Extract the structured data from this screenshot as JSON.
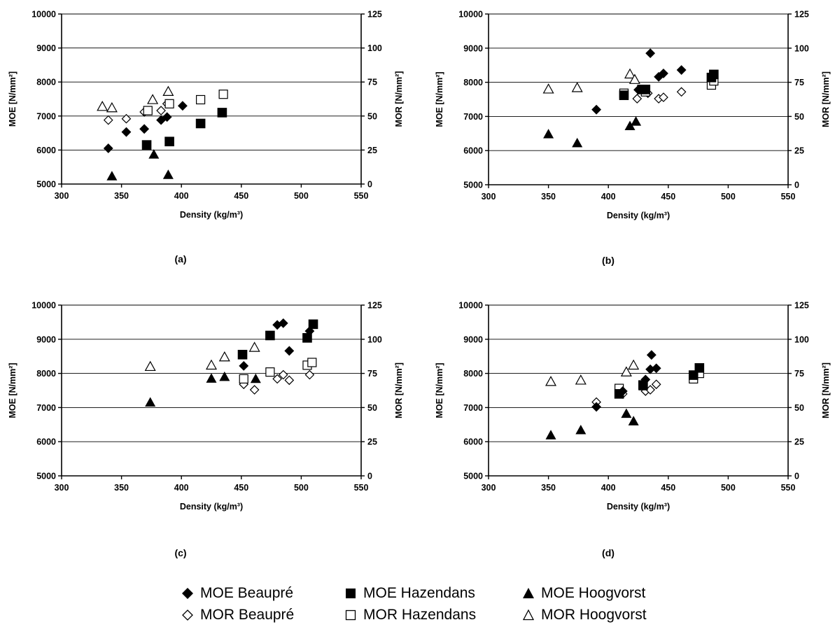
{
  "chart_data": [
    {
      "type": "scatter",
      "panel_label": "(a)",
      "xlabel": "Density (kg/m³)",
      "ylabel": "MOE [N/mm²]",
      "y2label": "MOR [N/mm²]",
      "xlim": [
        300,
        550
      ],
      "ylim": [
        5000,
        10000
      ],
      "y2lim": [
        0,
        125
      ],
      "xticks": [
        "300",
        "350",
        "400",
        "450",
        "500",
        "550"
      ],
      "yticks": [
        "5000",
        "6000",
        "7000",
        "8000",
        "9000",
        "10000"
      ],
      "y2ticks": [
        "0",
        "25",
        "50",
        "75",
        "100",
        "125"
      ],
      "grid": true,
      "series": [
        {
          "name": "MOE Beaupré",
          "axis": "left",
          "points": [
            [
              339,
              6050
            ],
            [
              354,
              6530
            ],
            [
              369,
              6620
            ],
            [
              383,
              6880
            ],
            [
              388,
              6970
            ],
            [
              401,
              7300
            ]
          ]
        },
        {
          "name": "MOE Hazendans",
          "axis": "left",
          "points": [
            [
              371,
              6150
            ],
            [
              390,
              6250
            ],
            [
              416,
              6780
            ],
            [
              434,
              7100
            ]
          ]
        },
        {
          "name": "MOE Hoogvorst",
          "axis": "left",
          "points": [
            [
              342,
              5230
            ],
            [
              377,
              5870
            ],
            [
              389,
              5270
            ]
          ]
        },
        {
          "name": "MOR Beaupré",
          "axis": "right",
          "points": [
            [
              339,
              47
            ],
            [
              354,
              48
            ],
            [
              369,
              53
            ],
            [
              383,
              54
            ],
            [
              388,
              59
            ]
          ]
        },
        {
          "name": "MOR Hazendans",
          "axis": "right",
          "points": [
            [
              372,
              54
            ],
            [
              390,
              59
            ],
            [
              416,
              62
            ],
            [
              435,
              66
            ]
          ]
        },
        {
          "name": "MOR Hoogvorst",
          "axis": "right",
          "points": [
            [
              334,
              57
            ],
            [
              342,
              56
            ],
            [
              376,
              62
            ],
            [
              389,
              68
            ]
          ]
        }
      ]
    },
    {
      "type": "scatter",
      "panel_label": "(b)",
      "xlabel": "Density (kg/m³)",
      "ylabel": "MOE [N/mm²]",
      "y2label": "MOR [N/mm²]",
      "xlim": [
        300,
        550
      ],
      "ylim": [
        5000,
        10000
      ],
      "y2lim": [
        0,
        125
      ],
      "xticks": [
        "300",
        "350",
        "400",
        "450",
        "500",
        "550"
      ],
      "yticks": [
        "5000",
        "6000",
        "7000",
        "8000",
        "9000",
        "10000"
      ],
      "y2ticks": [
        "0",
        "25",
        "50",
        "75",
        "100",
        "125"
      ],
      "grid": true,
      "series": [
        {
          "name": "MOE Beaupré",
          "axis": "left",
          "points": [
            [
              390,
              7200
            ],
            [
              425,
              7780
            ],
            [
              435,
              8850
            ],
            [
              442,
              8160
            ],
            [
              446,
              8260
            ],
            [
              461,
              8360
            ]
          ]
        },
        {
          "name": "MOE Hazendans",
          "axis": "left",
          "points": [
            [
              413,
              7620
            ],
            [
              428,
              7790
            ],
            [
              431,
              7790
            ],
            [
              486,
              8140
            ],
            [
              488,
              8230
            ]
          ]
        },
        {
          "name": "MOE Hoogvorst",
          "axis": "left",
          "points": [
            [
              350,
              6480
            ],
            [
              374,
              6220
            ],
            [
              418,
              6720
            ],
            [
              423,
              6850
            ]
          ]
        },
        {
          "name": "MOR Beaupré",
          "axis": "right",
          "points": [
            [
              424,
              63
            ],
            [
              433,
              67
            ],
            [
              442,
              63
            ],
            [
              446,
              64
            ],
            [
              461,
              68
            ]
          ]
        },
        {
          "name": "MOR Hazendans",
          "axis": "right",
          "points": [
            [
              413,
              67
            ],
            [
              431,
              68
            ],
            [
              486,
              73
            ],
            [
              488,
              76
            ]
          ]
        },
        {
          "name": "MOR Hoogvorst",
          "axis": "right",
          "points": [
            [
              350,
              70
            ],
            [
              374,
              71
            ],
            [
              418,
              81
            ],
            [
              422,
              77
            ]
          ]
        }
      ]
    },
    {
      "type": "scatter",
      "panel_label": "(c)",
      "xlabel": "Density (kg/m³)",
      "ylabel": "MOE [N/mm²]",
      "y2label": "MOR [N/mm²]",
      "xlim": [
        300,
        550
      ],
      "ylim": [
        5000,
        10000
      ],
      "y2lim": [
        0,
        125
      ],
      "xticks": [
        "300",
        "350",
        "400",
        "450",
        "500",
        "550"
      ],
      "yticks": [
        "5000",
        "6000",
        "7000",
        "8000",
        "9000",
        "10000"
      ],
      "y2ticks": [
        "0",
        "25",
        "50",
        "75",
        "100",
        "125"
      ],
      "grid": true,
      "series": [
        {
          "name": "MOE Beaupré",
          "axis": "left",
          "points": [
            [
              452,
              8220
            ],
            [
              480,
              9420
            ],
            [
              485,
              9470
            ],
            [
              490,
              8660
            ],
            [
              507,
              9240
            ]
          ]
        },
        {
          "name": "MOE Hazendans",
          "axis": "left",
          "points": [
            [
              451,
              8550
            ],
            [
              474,
              9110
            ],
            [
              505,
              9040
            ],
            [
              510,
              9440
            ]
          ]
        },
        {
          "name": "MOE Hoogvorst",
          "axis": "left",
          "points": [
            [
              374,
              7150
            ],
            [
              425,
              7850
            ],
            [
              436,
              7900
            ],
            [
              462,
              7840
            ]
          ]
        },
        {
          "name": "MOR Beaupré",
          "axis": "right",
          "points": [
            [
              452,
              67
            ],
            [
              461,
              63
            ],
            [
              480,
              71
            ],
            [
              485,
              74
            ],
            [
              490,
              70
            ],
            [
              507,
              74
            ]
          ]
        },
        {
          "name": "MOR Hazendans",
          "axis": "right",
          "points": [
            [
              452,
              71
            ],
            [
              474,
              76
            ],
            [
              505,
              81
            ],
            [
              509,
              83
            ]
          ]
        },
        {
          "name": "MOR Hoogvorst",
          "axis": "right",
          "points": [
            [
              374,
              80
            ],
            [
              425,
              81
            ],
            [
              436,
              87
            ],
            [
              461,
              94
            ]
          ]
        }
      ]
    },
    {
      "type": "scatter",
      "panel_label": "(d)",
      "xlabel": "Density (kg/m³)",
      "ylabel": "MOE [N/mm²]",
      "y2label": "MOR [N/mm²]",
      "xlim": [
        300,
        550
      ],
      "ylim": [
        5000,
        10000
      ],
      "y2lim": [
        0,
        125
      ],
      "xticks": [
        "300",
        "350",
        "400",
        "450",
        "500",
        "550"
      ],
      "yticks": [
        "5000",
        "6000",
        "7000",
        "8000",
        "9000",
        "10000"
      ],
      "y2ticks": [
        "0",
        "25",
        "50",
        "75",
        "100",
        "125"
      ],
      "grid": true,
      "series": [
        {
          "name": "MOE Beaupré",
          "axis": "left",
          "points": [
            [
              390,
              7020
            ],
            [
              412,
              7480
            ],
            [
              431,
              7820
            ],
            [
              435,
              8120
            ],
            [
              436,
              8540
            ],
            [
              440,
              8150
            ]
          ]
        },
        {
          "name": "MOE Hazendans",
          "axis": "left",
          "points": [
            [
              409,
              7400
            ],
            [
              429,
              7660
            ],
            [
              471,
              7950
            ],
            [
              476,
              8160
            ]
          ]
        },
        {
          "name": "MOE Hoogvorst",
          "axis": "left",
          "points": [
            [
              352,
              6190
            ],
            [
              377,
              6340
            ],
            [
              415,
              6820
            ],
            [
              421,
              6600
            ]
          ]
        },
        {
          "name": "MOR Beaupré",
          "axis": "right",
          "points": [
            [
              390,
              54
            ],
            [
              412,
              60
            ],
            [
              431,
              62
            ],
            [
              435,
              63
            ],
            [
              440,
              67
            ]
          ]
        },
        {
          "name": "MOR Hazendans",
          "axis": "right",
          "points": [
            [
              409,
              64
            ],
            [
              429,
              66
            ],
            [
              471,
              71
            ],
            [
              476,
              75
            ]
          ]
        },
        {
          "name": "MOR Hoogvorst",
          "axis": "right",
          "points": [
            [
              352,
              69
            ],
            [
              377,
              70
            ],
            [
              415,
              76
            ],
            [
              421,
              81
            ]
          ]
        }
      ]
    }
  ],
  "legend": {
    "placement": "bottom-center",
    "rows": [
      [
        {
          "label": "MOE Beaupré",
          "marker": "diamond-filled-icon"
        },
        {
          "label": "MOE Hazendans",
          "marker": "square-filled-icon"
        },
        {
          "label": "MOE Hoogvorst",
          "marker": "triangle-filled-icon"
        }
      ],
      [
        {
          "label": "MOR Beaupré",
          "marker": "diamond-open-icon"
        },
        {
          "label": "MOR Hazendans",
          "marker": "square-open-icon"
        },
        {
          "label": "MOR Hoogvorst",
          "marker": "triangle-open-icon"
        }
      ]
    ]
  }
}
